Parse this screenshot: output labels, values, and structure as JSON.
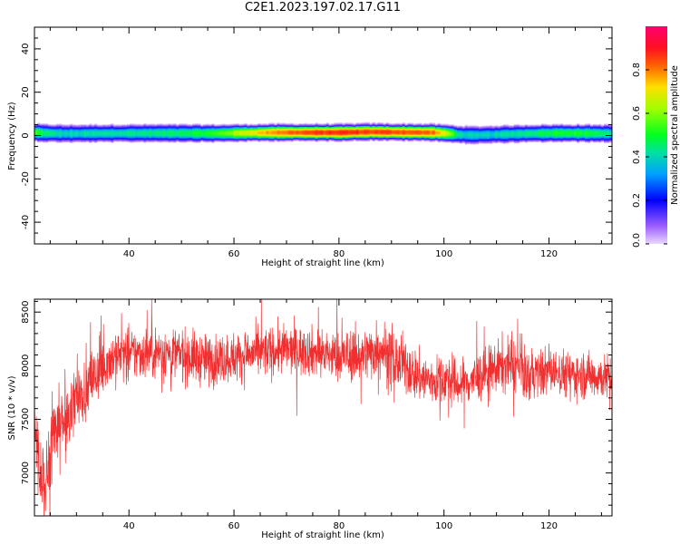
{
  "title": "C2E1.2023.197.02.17.G11",
  "colors": {
    "snr_line": "#f03030",
    "axes": "#000000",
    "colorbar": [
      "#c8a0ff",
      "#0000ff",
      "#00c0ff",
      "#00ff40",
      "#c0ff00",
      "#ffd000",
      "#ff2020",
      "#ff0070"
    ]
  },
  "chart_data": [
    {
      "type": "heatmap",
      "xlabel": "Height of straight line (km)",
      "ylabel": "Frequency (Hz)",
      "xlim": [
        22,
        132
      ],
      "ylim": [
        -50,
        50
      ],
      "xticks": [
        40,
        60,
        80,
        100,
        120
      ],
      "yticks": [
        40,
        20,
        0,
        -20,
        -40
      ],
      "grid": false,
      "band_profile": {
        "x": [
          22,
          24,
          28,
          36,
          46,
          56,
          62,
          68,
          74,
          80,
          86,
          92,
          98,
          101,
          103,
          106,
          110,
          116,
          122,
          128,
          132
        ],
        "center_hz": [
          1.5,
          1.2,
          1.0,
          1.1,
          1.2,
          1.1,
          1.3,
          1.5,
          1.5,
          1.5,
          1.8,
          1.6,
          1.5,
          1.0,
          0.5,
          0.3,
          0.6,
          1.0,
          1.2,
          1.1,
          1.0
        ],
        "peak_amplitude": [
          0.55,
          0.45,
          0.4,
          0.42,
          0.45,
          0.52,
          0.68,
          0.8,
          0.85,
          0.88,
          0.86,
          0.85,
          0.82,
          0.62,
          0.42,
          0.38,
          0.4,
          0.45,
          0.52,
          0.5,
          0.42
        ]
      },
      "colorbar": {
        "label": "Normalized spectral amplitude",
        "range": [
          0,
          1
        ],
        "ticks": [
          "0.0",
          "0.2",
          "0.4",
          "0.6",
          "0.8"
        ]
      }
    },
    {
      "type": "line",
      "xlabel": "Height of straight line (km)",
      "ylabel": "SNR (10 * v/v)",
      "xlim": [
        22,
        132
      ],
      "ylim": [
        6600,
        8620
      ],
      "xticks": [
        40,
        60,
        80,
        100,
        120
      ],
      "yticks": [
        8500,
        8000,
        7500,
        7000
      ],
      "grid": false,
      "series": [
        {
          "x": [
            22,
            23,
            24,
            25,
            26,
            28,
            30,
            32,
            34,
            36,
            38,
            40,
            45,
            50,
            55,
            60,
            65,
            70,
            75,
            80,
            85,
            88,
            90,
            92,
            95,
            98,
            100,
            103,
            106,
            110,
            113,
            116,
            120,
            125,
            130,
            132
          ],
          "mean": [
            7500,
            7050,
            6850,
            7250,
            7400,
            7500,
            7700,
            7820,
            7920,
            8050,
            8100,
            8100,
            8130,
            8100,
            8050,
            8080,
            8120,
            8150,
            8130,
            8080,
            8100,
            8180,
            8050,
            8020,
            7900,
            7850,
            7880,
            7820,
            7880,
            7980,
            8020,
            7900,
            7950,
            7920,
            7900,
            7880
          ],
          "spread": [
            180,
            220,
            250,
            250,
            250,
            220,
            200,
            180,
            170,
            170,
            170,
            160,
            160,
            160,
            160,
            150,
            150,
            150,
            150,
            150,
            160,
            180,
            180,
            170,
            160,
            150,
            150,
            150,
            150,
            160,
            170,
            160,
            140,
            140,
            140,
            140
          ]
        }
      ]
    }
  ]
}
